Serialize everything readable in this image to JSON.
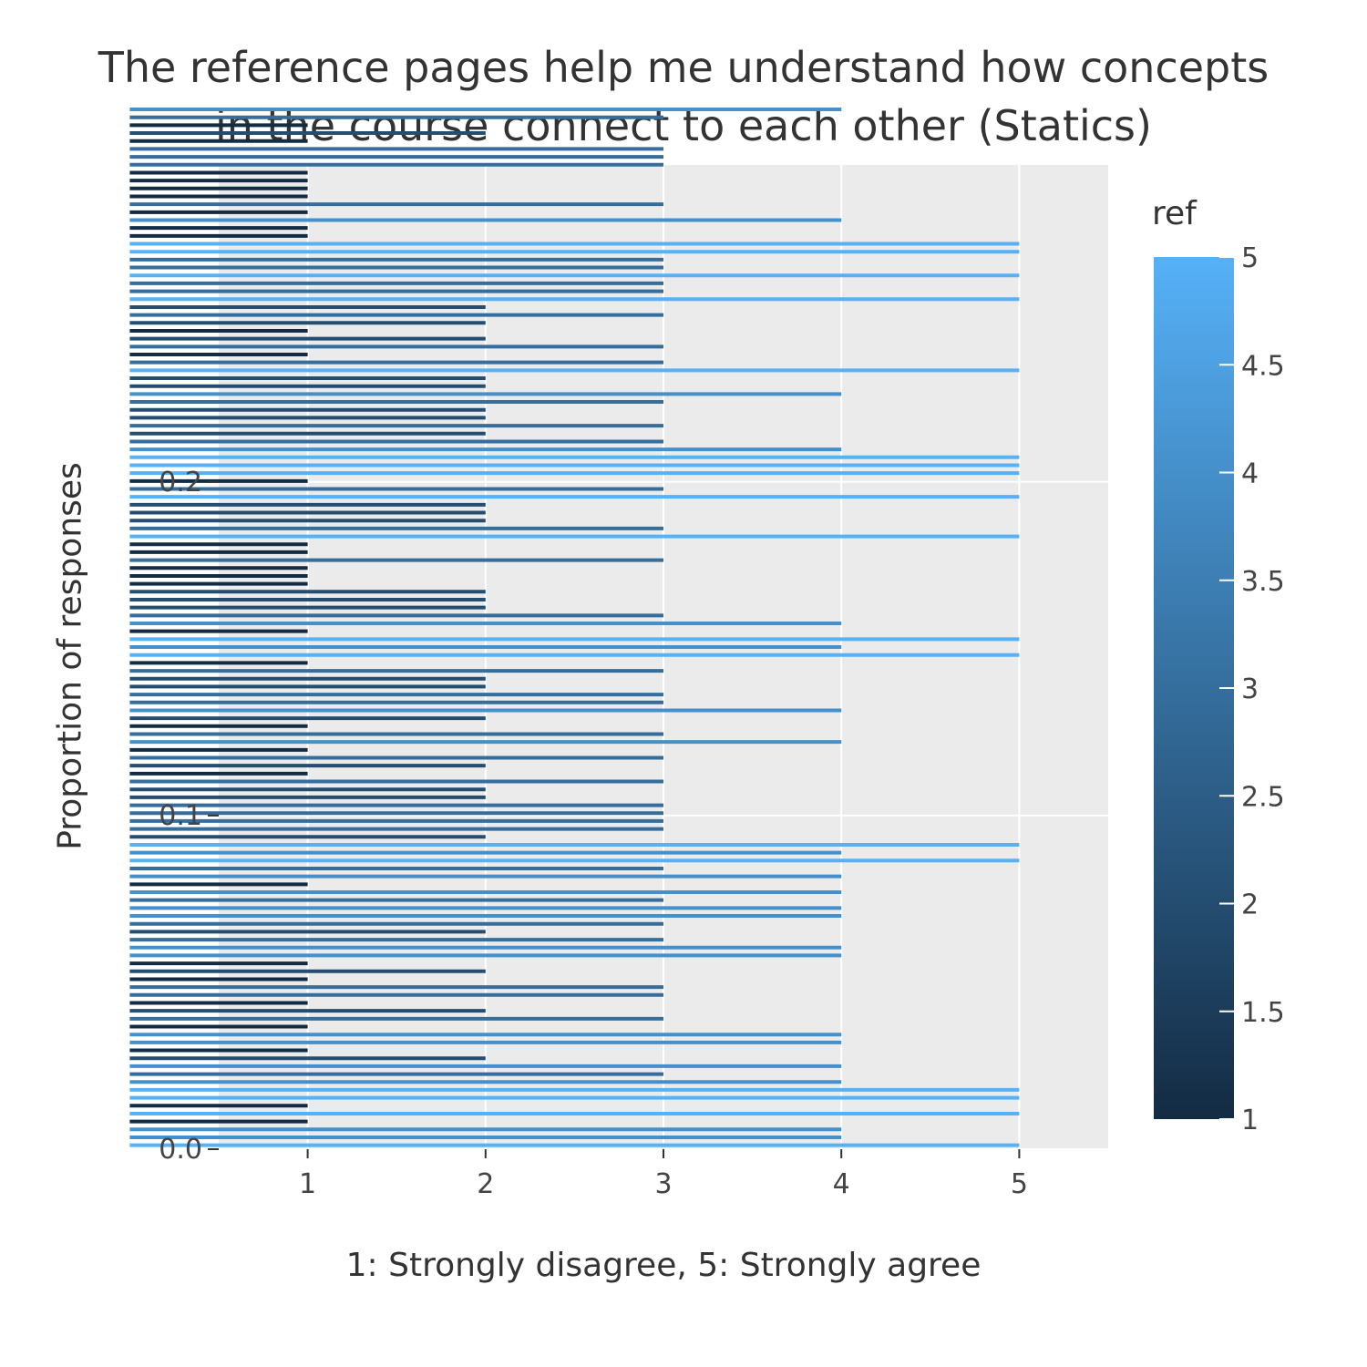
{
  "chart_data": {
    "type": "bar",
    "orientation": "horizontal",
    "title_line1": "The reference pages help me understand how concepts",
    "title_line2": "in the course connect to each other (Statics)",
    "xlabel": "1: Strongly disagree, 5: Strongly agree",
    "ylabel": "Proportion of responses",
    "x_ticks": [
      "1",
      "2",
      "3",
      "4",
      "5"
    ],
    "y_ticks": [
      "0.0",
      "0.1",
      "0.2"
    ],
    "xlim": [
      0.5,
      5.5
    ],
    "ylim": [
      0,
      0.295
    ],
    "grid": true,
    "colorbar": {
      "title": "ref",
      "ticks": [
        "1",
        "1.5",
        "2",
        "2.5",
        "3",
        "3.5",
        "4",
        "4.5",
        "5"
      ],
      "min": 1,
      "max": 5,
      "low_color": "#132B43",
      "high_color": "#56B1F7"
    },
    "background_color": "#ebebeb",
    "values": [
      5,
      4,
      4,
      1,
      5,
      1,
      5,
      5,
      4,
      3,
      4,
      2,
      1,
      4,
      4,
      1,
      3,
      2,
      1,
      3,
      3,
      1,
      2,
      1,
      4,
      4,
      3,
      2,
      3,
      4,
      4,
      3,
      4,
      1,
      4,
      3,
      5,
      4,
      5,
      2,
      3,
      3,
      3,
      3,
      2,
      2,
      3,
      1,
      2,
      3,
      1,
      4,
      3,
      1,
      2,
      4,
      3,
      3,
      2,
      2,
      3,
      1,
      5,
      4,
      5,
      1,
      4,
      3,
      2,
      2,
      2,
      1,
      1,
      1,
      3,
      1,
      1,
      5,
      3,
      2,
      2,
      2,
      5,
      3,
      1,
      5,
      5,
      5,
      4,
      3,
      2,
      3,
      2,
      2,
      3,
      4,
      2,
      2,
      5,
      3,
      1,
      3,
      2,
      1,
      2,
      3,
      2,
      5,
      3,
      3,
      5,
      3,
      3,
      5,
      5,
      1,
      1,
      4,
      1,
      3,
      1,
      1,
      1,
      1,
      3,
      3,
      3,
      1,
      2,
      1,
      3,
      4
    ],
    "bar_spacing": 0.00237
  }
}
